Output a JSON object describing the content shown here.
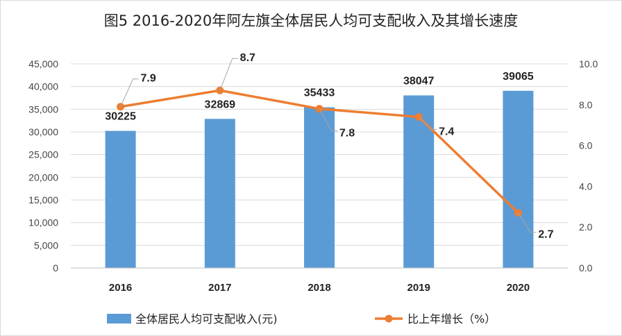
{
  "chart_data": {
    "type": "bar",
    "title": "图5 2016-2020年阿左旗全体居民人均可支配收入及其增长速度",
    "categories": [
      "2016",
      "2017",
      "2018",
      "2019",
      "2020"
    ],
    "series": [
      {
        "name": "全体居民人均可支配收入(元)",
        "type": "bar",
        "axis": "left",
        "values": [
          30225,
          32869,
          35433,
          38047,
          39065
        ],
        "labels": [
          "30225",
          "32869",
          "35433",
          "38047",
          "39065"
        ]
      },
      {
        "name": "比上年增长（%）",
        "type": "line",
        "axis": "right",
        "values": [
          7.9,
          8.7,
          7.8,
          7.4,
          2.7
        ],
        "labels": [
          "7.9",
          "8.7",
          "7.8",
          "7.4",
          "2.7"
        ]
      }
    ],
    "ylim_left": [
      0,
      45000
    ],
    "ylim_right": [
      0,
      10.0
    ],
    "yticks_left": [
      "0",
      "5,000",
      "10,000",
      "15,000",
      "20,000",
      "25,000",
      "30,000",
      "35,000",
      "40,000",
      "45,000"
    ],
    "yticks_right": [
      "0.0",
      "2.0",
      "4.0",
      "6.0",
      "8.0",
      "10.0"
    ],
    "grid": true,
    "legend_position": "bottom",
    "colors": {
      "bar": "#5b9bd5",
      "line": "#ed7d31"
    }
  }
}
